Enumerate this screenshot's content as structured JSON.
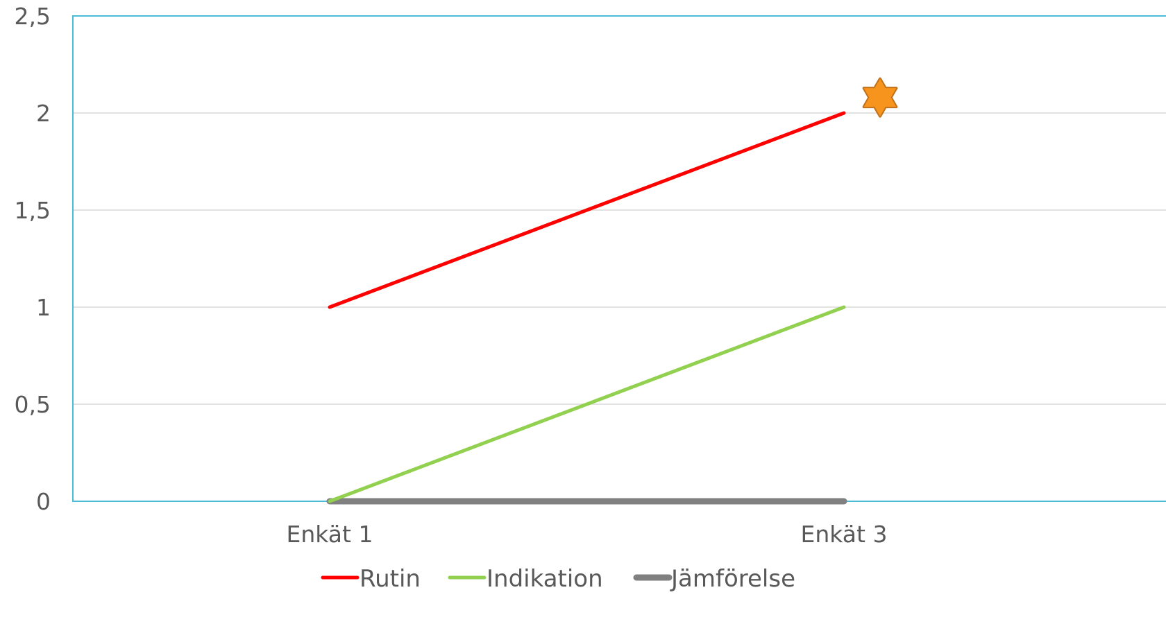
{
  "chart_data": {
    "type": "line",
    "categories": [
      "Enkät 1",
      "Enkät 3"
    ],
    "series": [
      {
        "name": "Rutin",
        "values": [
          1,
          2
        ],
        "color": "#ff0000"
      },
      {
        "name": "Indikation",
        "values": [
          0,
          1
        ],
        "color": "#92d050"
      },
      {
        "name": "Jämförelse",
        "values": [
          0,
          0
        ],
        "color": "#808080"
      }
    ],
    "y_ticks": [
      "0",
      "0,5",
      "1",
      "1,5",
      "2",
      "2,5"
    ],
    "ylim": [
      0,
      2.5
    ],
    "grid": true,
    "legend": "bottom",
    "annotations": [
      {
        "type": "star-icon",
        "category": "Enkät 3",
        "y": 2.08,
        "fill": "#f7941d",
        "stroke": "#c0711a"
      }
    ],
    "colors": {
      "plot_border": "#4bbcd7",
      "grid": "#d9d9d9",
      "text": "#595959"
    }
  }
}
